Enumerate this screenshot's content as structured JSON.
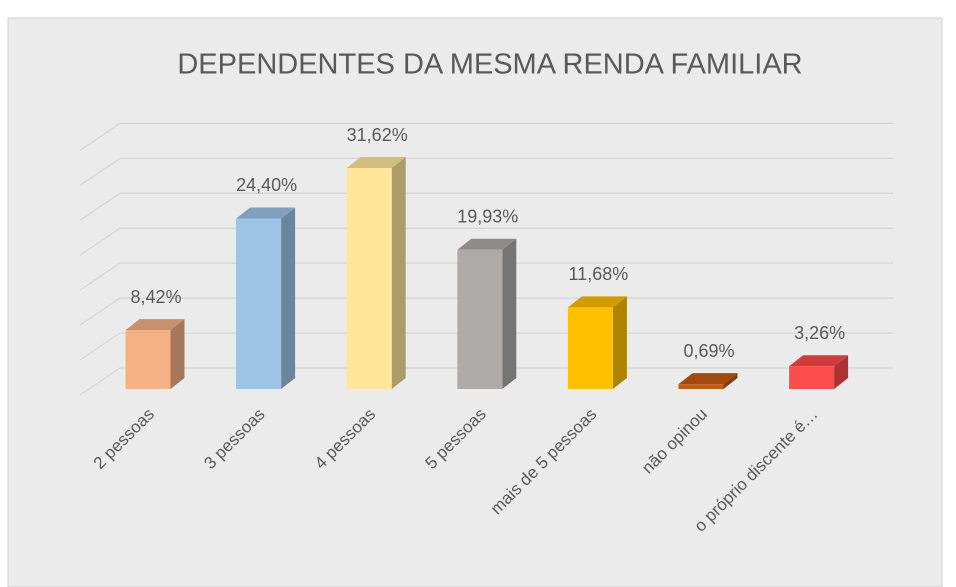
{
  "chart_data": {
    "type": "bar3d",
    "title": "DEPENDENTES DA MESMA RENDA FAMILIAR",
    "categories": [
      "2 pessoas",
      "3 pessoas",
      "4 pessoas",
      "5 pessoas",
      "mais de 5 pessoas",
      "não opinou",
      "o próprio discente é…"
    ],
    "values": [
      8.42,
      24.4,
      31.62,
      19.93,
      11.68,
      0.69,
      3.26
    ],
    "value_labels": [
      "8,42%",
      "24,40%",
      "31,62%",
      "19,93%",
      "11,68%",
      "0,69%",
      "3,26%"
    ],
    "colors": [
      "#f4b183",
      "#9dc3e6",
      "#ffe699",
      "#aeaaaa",
      "#ffc000",
      "#c55a11",
      "#ff4b4b"
    ],
    "ylim": [
      0,
      35
    ],
    "yticks": [
      0,
      5,
      10,
      15,
      20,
      25,
      30,
      35
    ],
    "grid": true
  }
}
